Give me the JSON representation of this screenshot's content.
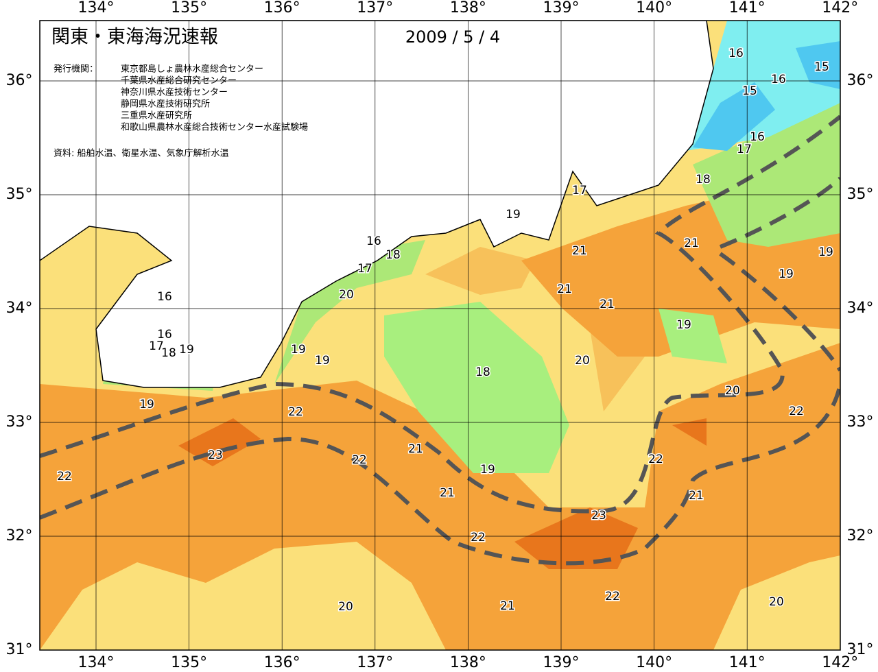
{
  "header": {
    "title": "関東・東海海況速報",
    "date": "2009 / 5 / 4",
    "agency_label": "発行機関：",
    "agencies": [
      "東京都島しょ農林水産総合センター",
      "千葉県水産総合研究センター",
      "神奈川県水産技術センター",
      "静岡県水産技術研究所",
      "三重県水産研究所",
      "和歌山県農林水産総合技術センター水産試験場"
    ],
    "source": "資料: 船舶水温、衛星水温、気象庁解析水温"
  },
  "map": {
    "lon_ticks": [
      {
        "value": 134,
        "label": "134°"
      },
      {
        "value": 135,
        "label": "135°"
      },
      {
        "value": 136,
        "label": "136°"
      },
      {
        "value": 137,
        "label": "137°"
      },
      {
        "value": 138,
        "label": "138°"
      },
      {
        "value": 139,
        "label": "139°"
      },
      {
        "value": 140,
        "label": "140°"
      },
      {
        "value": 141,
        "label": "141°"
      },
      {
        "value": 142,
        "label": "142°"
      }
    ],
    "lat_ticks": [
      {
        "value": 31,
        "label": "31°"
      },
      {
        "value": 32,
        "label": "32°"
      },
      {
        "value": 33,
        "label": "33°"
      },
      {
        "value": 34,
        "label": "34°"
      },
      {
        "value": 35,
        "label": "35°"
      },
      {
        "value": 36,
        "label": "36°"
      }
    ],
    "contour_labels": [
      16,
      15,
      16,
      15,
      16,
      17,
      18,
      17,
      19,
      16,
      18,
      17,
      21,
      21,
      19,
      19,
      20,
      21,
      21,
      16,
      19,
      16,
      17,
      18,
      19,
      19,
      19,
      20,
      18,
      20,
      19,
      22,
      22,
      23,
      22,
      21,
      22,
      19,
      22,
      21,
      21,
      23,
      22,
      22,
      21,
      20,
      20
    ]
  }
}
